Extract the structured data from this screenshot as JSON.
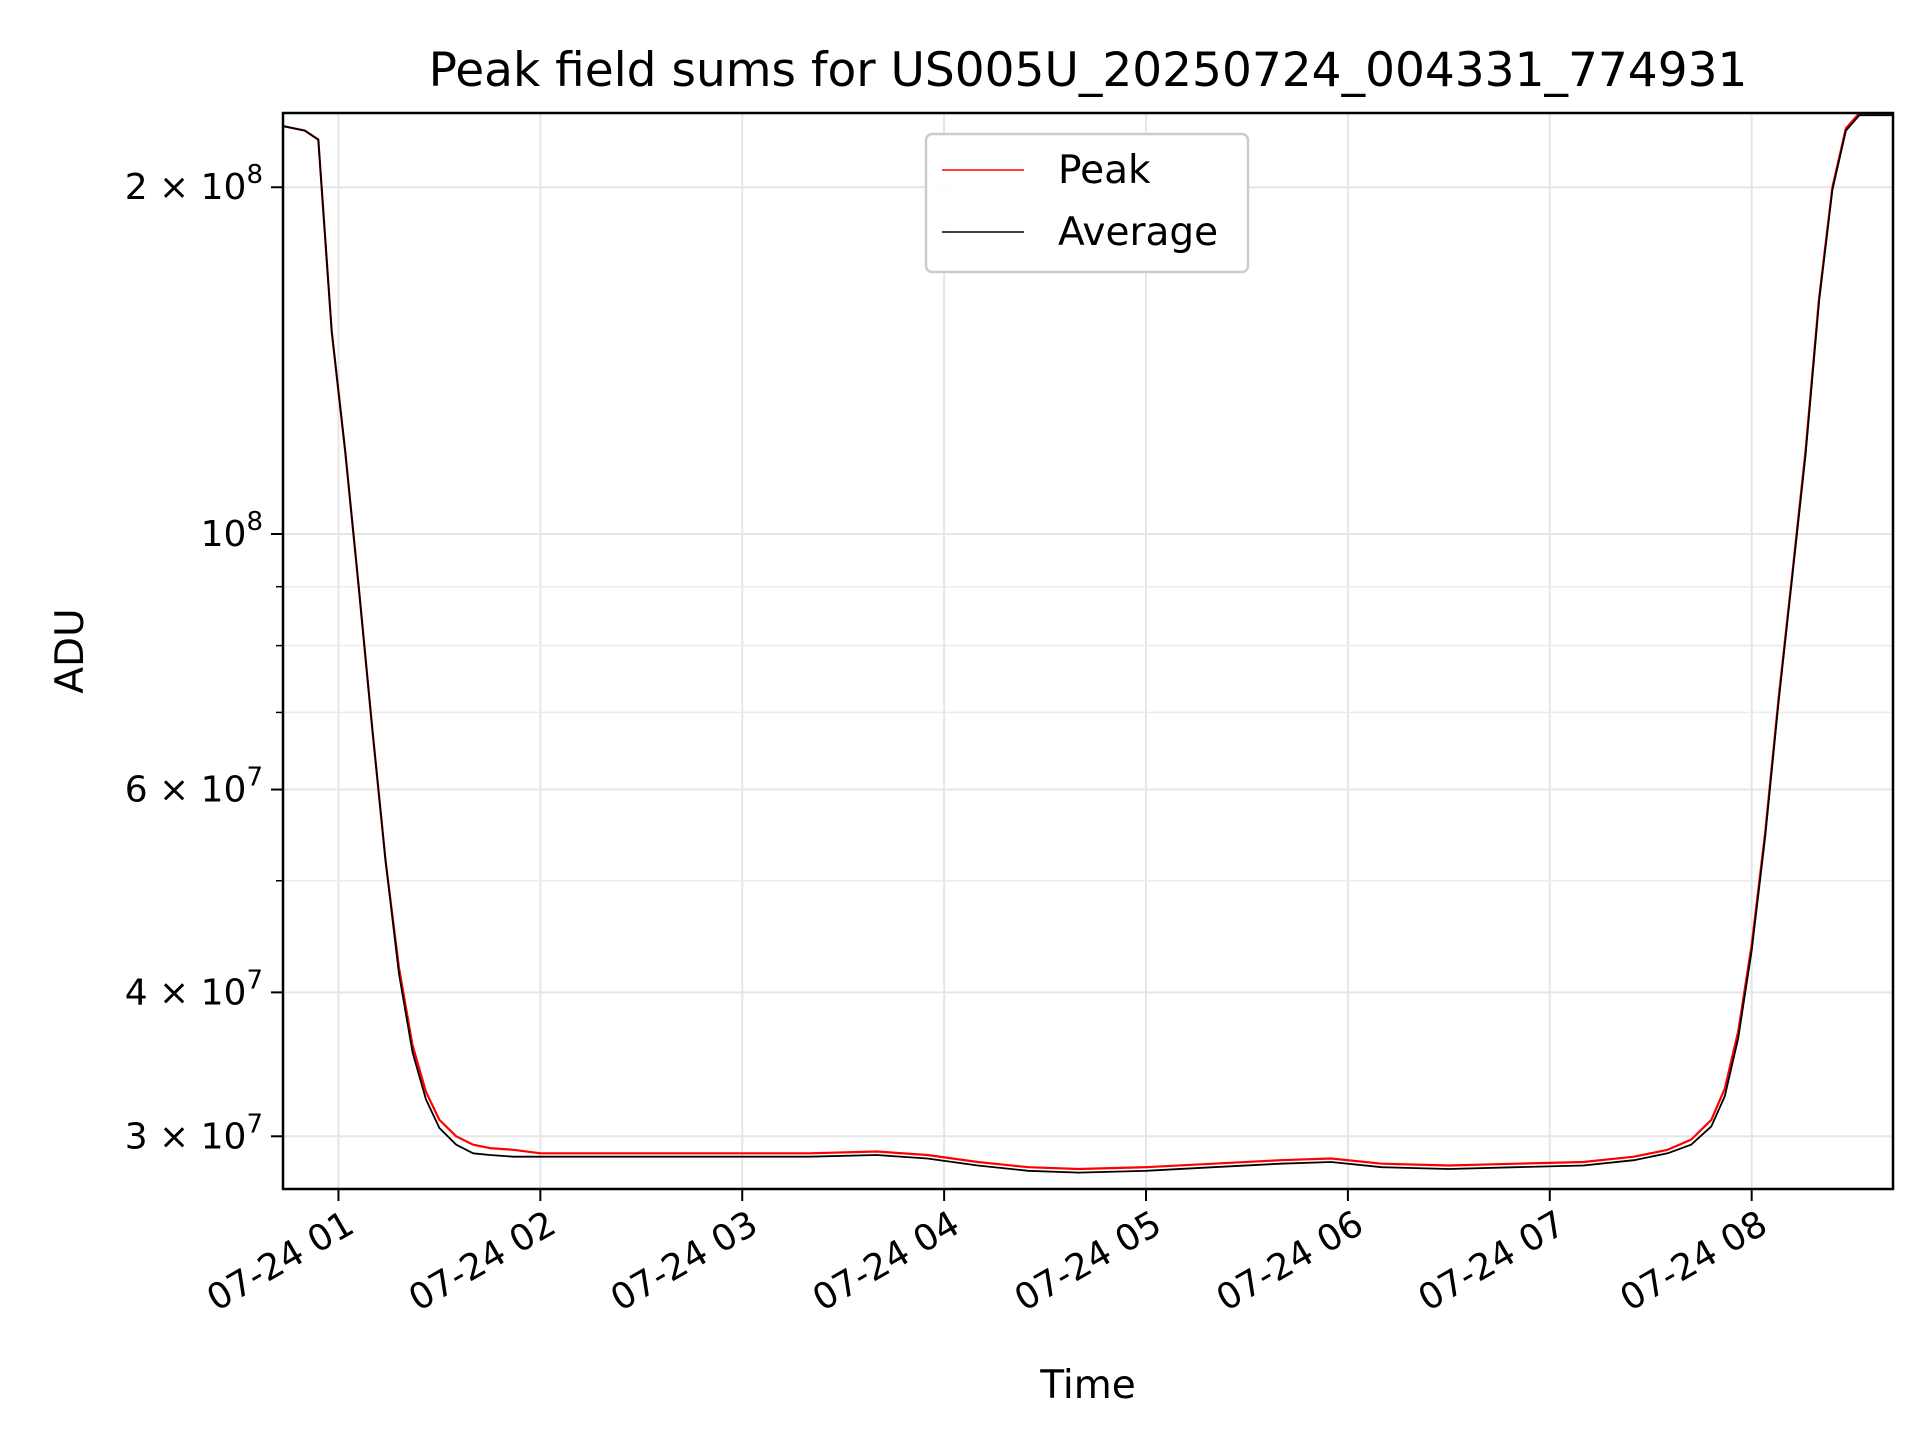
{
  "chart_data": {
    "type": "line",
    "title": "Peak field sums for US005U_20250724_004331_774931",
    "xlabel": "Time",
    "ylabel": "ADU",
    "yscale": "log",
    "grid": true,
    "legend_position": "top-center",
    "xlim": [
      "2025-07-24T00:43:31",
      "2025-07-24T08:42:00"
    ],
    "ylim": [
      27000000,
      232000000
    ],
    "x_ticks": [
      {
        "value": "2025-07-24T01:00:00",
        "label": "07-24 01"
      },
      {
        "value": "2025-07-24T02:00:00",
        "label": "07-24 02"
      },
      {
        "value": "2025-07-24T03:00:00",
        "label": "07-24 03"
      },
      {
        "value": "2025-07-24T04:00:00",
        "label": "07-24 04"
      },
      {
        "value": "2025-07-24T05:00:00",
        "label": "07-24 05"
      },
      {
        "value": "2025-07-24T06:00:00",
        "label": "07-24 06"
      },
      {
        "value": "2025-07-24T07:00:00",
        "label": "07-24 07"
      },
      {
        "value": "2025-07-24T08:00:00",
        "label": "07-24 08"
      }
    ],
    "y_ticks": [
      {
        "value": 30000000,
        "base": "3",
        "times": "×",
        "mant": "10",
        "exp": "7"
      },
      {
        "value": 40000000,
        "base": "4",
        "times": "×",
        "mant": "10",
        "exp": "7"
      },
      {
        "value": 60000000,
        "base": "6",
        "times": "×",
        "mant": "10",
        "exp": "7"
      },
      {
        "value": 100000000,
        "base": "",
        "times": "",
        "mant": "10",
        "exp": "8"
      },
      {
        "value": 200000000,
        "base": "2",
        "times": "×",
        "mant": "10",
        "exp": "8"
      }
    ],
    "y_minor_ticks": [
      50000000,
      70000000,
      80000000,
      90000000
    ],
    "series": [
      {
        "name": "Peak",
        "color": "#ff0000",
        "x": [
          "2025-07-24T00:43:31",
          "2025-07-24T00:50:00",
          "2025-07-24T00:54:00",
          "2025-07-24T00:58:00",
          "2025-07-24T01:02:00",
          "2025-07-24T01:06:00",
          "2025-07-24T01:10:00",
          "2025-07-24T01:14:00",
          "2025-07-24T01:18:00",
          "2025-07-24T01:22:00",
          "2025-07-24T01:26:00",
          "2025-07-24T01:30:00",
          "2025-07-24T01:35:00",
          "2025-07-24T01:40:00",
          "2025-07-24T01:45:00",
          "2025-07-24T01:52:00",
          "2025-07-24T02:00:00",
          "2025-07-24T02:15:00",
          "2025-07-24T02:35:00",
          "2025-07-24T02:55:00",
          "2025-07-24T03:20:00",
          "2025-07-24T03:40:00",
          "2025-07-24T03:55:00",
          "2025-07-24T04:10:00",
          "2025-07-24T04:25:00",
          "2025-07-24T04:40:00",
          "2025-07-24T05:00:00",
          "2025-07-24T05:20:00",
          "2025-07-24T05:40:00",
          "2025-07-24T05:55:00",
          "2025-07-24T06:10:00",
          "2025-07-24T06:30:00",
          "2025-07-24T06:50:00",
          "2025-07-24T07:10:00",
          "2025-07-24T07:25:00",
          "2025-07-24T07:35:00",
          "2025-07-24T07:42:00",
          "2025-07-24T07:48:00",
          "2025-07-24T07:52:00",
          "2025-07-24T07:56:00",
          "2025-07-24T08:00:00",
          "2025-07-24T08:04:00",
          "2025-07-24T08:08:00",
          "2025-07-24T08:12:00",
          "2025-07-24T08:16:00",
          "2025-07-24T08:20:00",
          "2025-07-24T08:24:00",
          "2025-07-24T08:28:00",
          "2025-07-24T08:32:00",
          "2025-07-24T08:42:00"
        ],
        "y": [
          226000000,
          224000000,
          220000000,
          150000000,
          118000000,
          90000000,
          68000000,
          52000000,
          42000000,
          36000000,
          32800000,
          31000000,
          30000000,
          29500000,
          29300000,
          29200000,
          29000000,
          29000000,
          29000000,
          29000000,
          29000000,
          29100000,
          28900000,
          28500000,
          28200000,
          28100000,
          28200000,
          28400000,
          28600000,
          28700000,
          28400000,
          28300000,
          28400000,
          28500000,
          28800000,
          29200000,
          29800000,
          31000000,
          33000000,
          37000000,
          44000000,
          55000000,
          72000000,
          92000000,
          118000000,
          160000000,
          200000000,
          225000000,
          232000000,
          232000000
        ]
      },
      {
        "name": "Average",
        "color": "#000000",
        "x": [
          "2025-07-24T00:43:31",
          "2025-07-24T00:50:00",
          "2025-07-24T00:54:00",
          "2025-07-24T00:58:00",
          "2025-07-24T01:02:00",
          "2025-07-24T01:06:00",
          "2025-07-24T01:10:00",
          "2025-07-24T01:14:00",
          "2025-07-24T01:18:00",
          "2025-07-24T01:22:00",
          "2025-07-24T01:26:00",
          "2025-07-24T01:30:00",
          "2025-07-24T01:35:00",
          "2025-07-24T01:40:00",
          "2025-07-24T01:45:00",
          "2025-07-24T01:52:00",
          "2025-07-24T02:00:00",
          "2025-07-24T02:15:00",
          "2025-07-24T02:35:00",
          "2025-07-24T02:55:00",
          "2025-07-24T03:20:00",
          "2025-07-24T03:40:00",
          "2025-07-24T03:55:00",
          "2025-07-24T04:10:00",
          "2025-07-24T04:25:00",
          "2025-07-24T04:40:00",
          "2025-07-24T05:00:00",
          "2025-07-24T05:20:00",
          "2025-07-24T05:40:00",
          "2025-07-24T05:55:00",
          "2025-07-24T06:10:00",
          "2025-07-24T06:30:00",
          "2025-07-24T06:50:00",
          "2025-07-24T07:10:00",
          "2025-07-24T07:25:00",
          "2025-07-24T07:35:00",
          "2025-07-24T07:42:00",
          "2025-07-24T07:48:00",
          "2025-07-24T07:52:00",
          "2025-07-24T07:56:00",
          "2025-07-24T08:00:00",
          "2025-07-24T08:04:00",
          "2025-07-24T08:08:00",
          "2025-07-24T08:12:00",
          "2025-07-24T08:16:00",
          "2025-07-24T08:20:00",
          "2025-07-24T08:24:00",
          "2025-07-24T08:28:00",
          "2025-07-24T08:32:00",
          "2025-07-24T08:42:00"
        ],
        "y": [
          226000000,
          224000000,
          220000000,
          150000000,
          118000000,
          90000000,
          68000000,
          52000000,
          41500000,
          35500000,
          32300000,
          30500000,
          29500000,
          29000000,
          28900000,
          28800000,
          28800000,
          28800000,
          28800000,
          28800000,
          28800000,
          28900000,
          28700000,
          28300000,
          28000000,
          27900000,
          28000000,
          28200000,
          28400000,
          28500000,
          28200000,
          28100000,
          28200000,
          28300000,
          28600000,
          29000000,
          29500000,
          30600000,
          32500000,
          36500000,
          43500000,
          54500000,
          71500000,
          91500000,
          117000000,
          159000000,
          199000000,
          224000000,
          231000000,
          231000000
        ]
      }
    ]
  }
}
